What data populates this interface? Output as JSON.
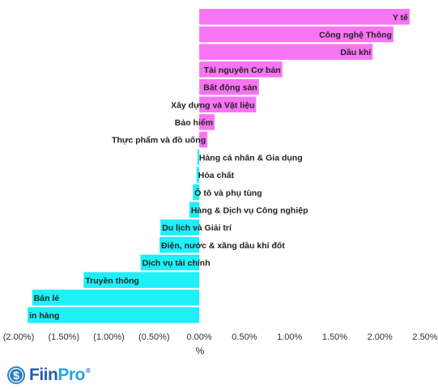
{
  "chart_data": {
    "type": "bar",
    "orientation": "horizontal",
    "categories": [
      "Y tế",
      "Công nghệ Thông",
      "Dầu khí",
      "Tài nguyên Cơ bản",
      "Bất động sản",
      "Xây dựng và Vật liệu",
      "Bảo hiểm",
      "Thực phẩm và đồ uống",
      "Hàng cá nhân & Gia dụng",
      "Hóa chất",
      "Ô tô và phụ tùng",
      "Hàng & Dịch vụ Công nghiệp",
      "Du lịch và Giải trí",
      "Điện, nước & xăng dầu khí đốt",
      "Dịch vụ tài chính",
      "Truyền thông",
      "Bán lẻ",
      "in hàng"
    ],
    "values": [
      2.33,
      2.15,
      1.92,
      0.92,
      0.66,
      0.63,
      0.17,
      0.09,
      -0.02,
      -0.03,
      -0.07,
      -0.11,
      -0.43,
      -0.44,
      -0.65,
      -1.28,
      -1.85,
      -1.9
    ],
    "xlabel": "%",
    "xlim": [
      -2.0,
      2.5
    ],
    "xticks": [
      -2.0,
      -1.5,
      -1.0,
      -0.5,
      0.0,
      0.5,
      1.0,
      1.5,
      2.0,
      2.5
    ],
    "xtick_labels": [
      "(2.00%)",
      "(1.50%)",
      "(1.00%)",
      "(0.50%)",
      "0.00%",
      "0.50%",
      "1.00%",
      "1.50%",
      "2.00%",
      "2.50%"
    ],
    "grid": false,
    "legend": false
  },
  "colors": {
    "positive": "#f774f3",
    "negative": "#1ef0f8"
  },
  "logo": {
    "brand_a": "Fiin",
    "brand_b": "Pro",
    "mark": "®",
    "icon": "fiinpro-dollar-circle-icon"
  }
}
